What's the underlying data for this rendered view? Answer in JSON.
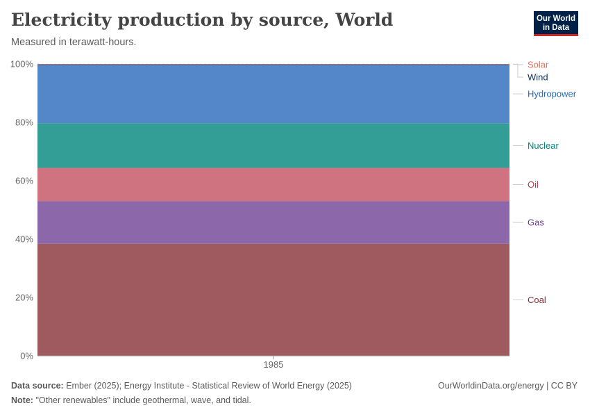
{
  "header": {
    "title": "Electricity production by source, World",
    "subtitle": "Measured in terawatt-hours.",
    "logo_line1": "Our World",
    "logo_line2": "in Data"
  },
  "footer": {
    "source_label": "Data source:",
    "source_text": "Ember (2025); Energy Institute - Statistical Review of World Energy (2025)",
    "license": "OurWorldinData.org/energy | CC BY",
    "note_label": "Note:",
    "note_text": "\"Other renewables\" include geothermal, wave, and tidal."
  },
  "chart_data": {
    "type": "area",
    "stacked": "percent",
    "x": [
      "1985"
    ],
    "y_ticks": [
      "0%",
      "20%",
      "40%",
      "60%",
      "80%",
      "100%"
    ],
    "ylim": [
      0,
      100
    ],
    "grid": "horizontal dashed",
    "legend": "right, line labels",
    "series": [
      {
        "name": "Coal",
        "share": 38.4,
        "color": "#9e5a5e",
        "label_color": "#8c2e37"
      },
      {
        "name": "Gas",
        "share": 14.6,
        "color": "#8c67aa",
        "label_color": "#6b3d8d"
      },
      {
        "name": "Oil",
        "share": 11.4,
        "color": "#cf7381",
        "label_color": "#b13f51"
      },
      {
        "name": "Nuclear",
        "share": 15.3,
        "color": "#339e95",
        "label_color": "#00847e"
      },
      {
        "name": "Hydropower",
        "share": 20.1,
        "color": "#5487c9",
        "label_color": "#286bbb"
      },
      {
        "name": "Wind",
        "share": 0.1,
        "color": "#0f2e5c",
        "label_color": "#0f2e5c"
      },
      {
        "name": "Solar",
        "share": 0.1,
        "color": "#e28a6b",
        "label_color": "#e56e5a"
      }
    ]
  }
}
